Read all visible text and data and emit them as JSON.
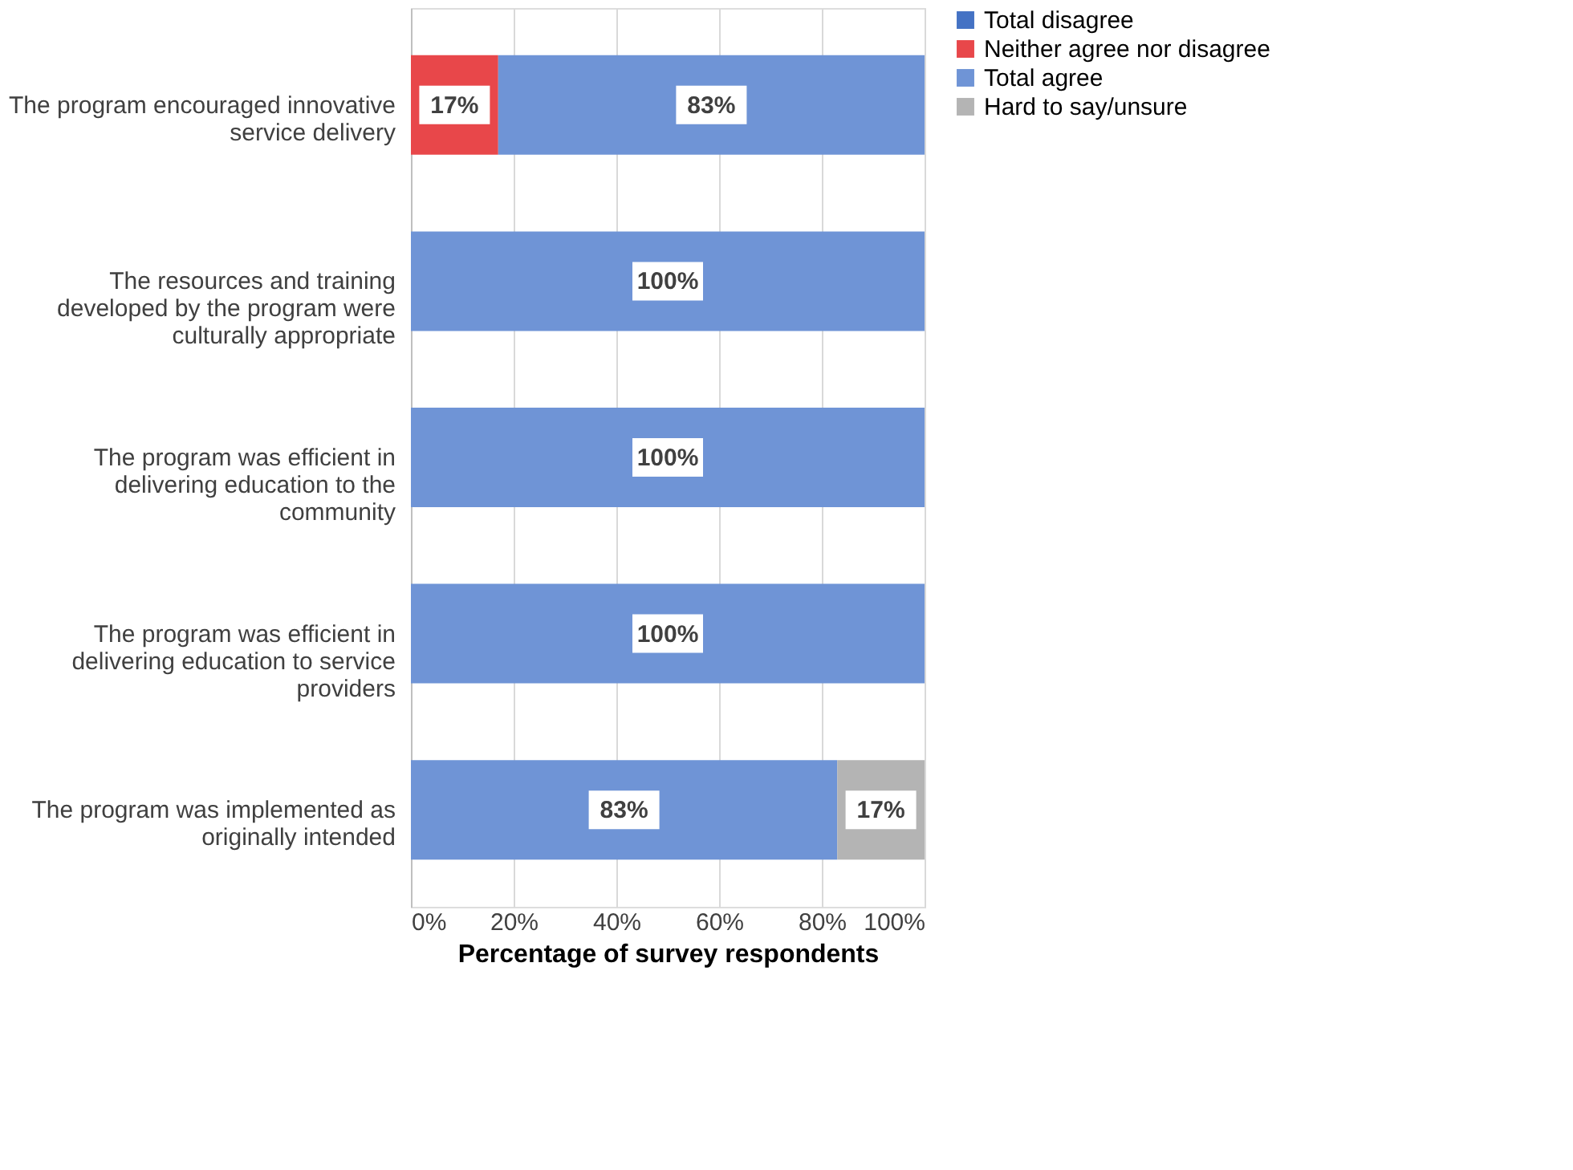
{
  "chart_data": {
    "type": "bar",
    "orientation": "horizontal",
    "stacked": true,
    "xlabel": "Percentage of survey respondents",
    "categories": [
      "The program encouraged innovative service delivery",
      "The resources and training developed by the program were culturally appropriate",
      "The program was efficient in delivering education to the community",
      "The program was efficient in delivering education to service providers",
      "The program was implemented as originally intended"
    ],
    "series": [
      {
        "name": "Total disagree",
        "color": "#4472c4",
        "values": [
          0,
          0,
          0,
          0,
          0
        ],
        "value_labels": [
          null,
          null,
          null,
          null,
          null
        ]
      },
      {
        "name": "Neither agree nor disagree",
        "color": "#e8474a",
        "values": [
          17,
          0,
          0,
          0,
          0
        ],
        "value_labels": [
          "17%",
          null,
          null,
          null,
          null
        ]
      },
      {
        "name": "Total agree",
        "color": "#6f94d6",
        "values": [
          83,
          100,
          100,
          100,
          83
        ],
        "value_labels": [
          "83%",
          "100%",
          "100%",
          "100%",
          "83%"
        ]
      },
      {
        "name": "Hard to say/unsure",
        "color": "#b4b4b4",
        "values": [
          0,
          0,
          0,
          0,
          17
        ],
        "value_labels": [
          null,
          null,
          null,
          null,
          "17%"
        ]
      }
    ],
    "xlim": [
      0,
      100
    ],
    "xticks": [
      {
        "value": 0,
        "label": "0%"
      },
      {
        "value": 20,
        "label": "20%"
      },
      {
        "value": 40,
        "label": "40%"
      },
      {
        "value": 60,
        "label": "60%"
      },
      {
        "value": 80,
        "label": "80%"
      },
      {
        "value": 100,
        "label": "100%"
      }
    ],
    "grid": "x",
    "legend": "right"
  }
}
